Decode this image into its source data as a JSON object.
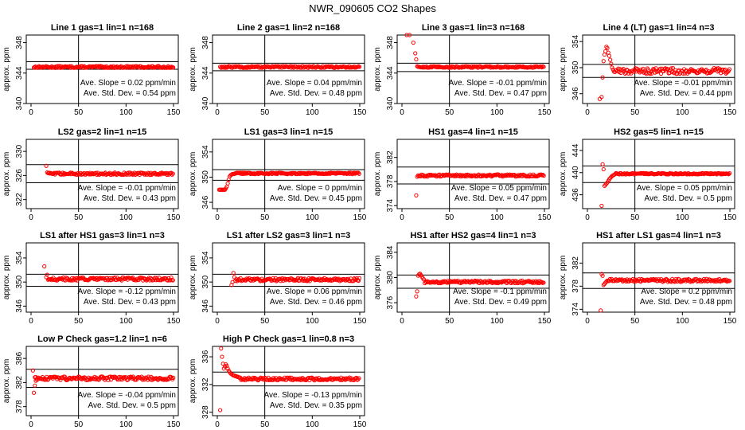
{
  "page_title": "NWR_090605  CO2 Shapes",
  "colors": {
    "points": "#ff0000",
    "axes": "#000000",
    "text": "#000000"
  },
  "chart_data": [
    {
      "type": "scatter",
      "title": "Line 1 gas=1 lin=1 n=168",
      "ylabel": "approx. ppm",
      "xlim": [
        0,
        150
      ],
      "ylim": [
        340,
        349
      ],
      "y_ticks": [
        340,
        344,
        348
      ],
      "x_ticks": [
        0,
        50,
        100,
        150
      ],
      "vline_x": 50,
      "hlines": [
        344.5,
        345.5
      ],
      "slope_text": "Ave. Slope = 0.02 ppm/min",
      "std_text": "Ave. Std. Dev. = 0.54 ppm",
      "shape": {
        "start": 3,
        "end": 150,
        "base": 344.8,
        "noise": 0.12,
        "spike": []
      }
    },
    {
      "type": "scatter",
      "title": "Line 2 gas=1 lin=2 n=168",
      "ylabel": "approx. ppm",
      "xlim": [
        0,
        150
      ],
      "ylim": [
        340,
        349
      ],
      "y_ticks": [
        340,
        344,
        348
      ],
      "x_ticks": [
        0,
        50,
        100,
        150
      ],
      "vline_x": 50,
      "hlines": [
        344.3,
        345.3
      ],
      "slope_text": "Ave. Slope = 0.04 ppm/min",
      "std_text": "Ave. Std. Dev. = 0.48 ppm",
      "shape": {
        "start": 3,
        "end": 150,
        "base": 344.8,
        "noise": 0.12,
        "spike": []
      }
    },
    {
      "type": "scatter",
      "title": "Line 3 gas=1 lin=3 n=168",
      "ylabel": "approx. ppm",
      "xlim": [
        0,
        150
      ],
      "ylim": [
        340,
        349
      ],
      "y_ticks": [
        340,
        344,
        348
      ],
      "x_ticks": [
        0,
        50,
        100,
        150
      ],
      "vline_x": 50,
      "hlines": [
        344.2,
        345.3
      ],
      "slope_text": "Ave. Slope = -0.01 ppm/min",
      "std_text": "Ave. Std. Dev. = 0.47 ppm",
      "shape": {
        "start": 16,
        "end": 150,
        "base": 344.8,
        "noise": 0.1,
        "spike": [
          [
            5,
            349
          ],
          [
            8,
            349
          ],
          [
            12,
            348
          ],
          [
            14,
            346.6
          ],
          [
            15,
            345.8
          ]
        ]
      }
    },
    {
      "type": "scatter",
      "title": "Line 4 (LT) gas=1 lin=4 n=3",
      "ylabel": "approx. ppm",
      "xlim": [
        0,
        150
      ],
      "ylim": [
        344.5,
        355
      ],
      "y_ticks": [
        346,
        350,
        354
      ],
      "x_ticks": [
        0,
        50,
        100,
        150
      ],
      "vline_x": 50,
      "hlines": [
        348.5,
        350.5
      ],
      "slope_text": "Ave. Slope = -0.01 ppm/min",
      "std_text": "Ave. Std. Dev. = 0.44 ppm",
      "shape": {
        "start": 28,
        "end": 150,
        "base": 349.5,
        "noise": 0.45,
        "spike": [
          [
            13,
            345.2
          ],
          [
            15,
            345.5
          ],
          [
            16,
            348.5
          ],
          [
            17,
            351
          ],
          [
            18,
            352
          ],
          [
            19,
            352.5
          ],
          [
            20,
            353.2
          ],
          [
            21,
            353
          ],
          [
            22,
            352.3
          ],
          [
            23,
            351.8
          ],
          [
            24,
            351.2
          ],
          [
            25,
            350.6
          ],
          [
            26,
            350
          ],
          [
            27,
            349.7
          ]
        ]
      }
    },
    {
      "type": "scatter",
      "title": "LS2 gas=2 lin=1 n=15",
      "ylabel": "approx. ppm",
      "xlim": [
        0,
        150
      ],
      "ylim": [
        320.5,
        332
      ],
      "y_ticks": [
        322,
        326,
        330
      ],
      "x_ticks": [
        0,
        50,
        100,
        150
      ],
      "vline_x": 50,
      "hlines": [
        324.8,
        327.8
      ],
      "slope_text": "Ave. Slope = -0.01 ppm/min",
      "std_text": "Ave. Std. Dev. = 0.43 ppm",
      "shape": {
        "start": 18,
        "end": 150,
        "base": 326.3,
        "noise": 0.18,
        "spike": [
          [
            16,
            327.6
          ],
          [
            17,
            326.5
          ]
        ]
      }
    },
    {
      "type": "scatter",
      "title": "LS1 gas=3 lin=1 n=15",
      "ylabel": "approx. ppm",
      "xlim": [
        0,
        150
      ],
      "ylim": [
        345,
        356
      ],
      "y_ticks": [
        346,
        350,
        354
      ],
      "x_ticks": [
        0,
        50,
        100,
        150
      ],
      "vline_x": 50,
      "hlines": [
        349.5,
        351.2
      ],
      "slope_text": "Ave. Slope = 0 ppm/min",
      "std_text": "Ave. Std. Dev. = 0.45 ppm",
      "shape": {
        "start": 18,
        "end": 150,
        "base": 350.6,
        "noise": 0.12,
        "spike": [
          [
            2,
            348
          ],
          [
            3,
            348
          ],
          [
            4,
            348
          ],
          [
            5,
            348
          ],
          [
            6,
            348
          ],
          [
            7,
            348
          ],
          [
            8,
            348
          ],
          [
            9,
            348.2
          ],
          [
            10,
            348.5
          ],
          [
            11,
            349
          ],
          [
            12,
            349.6
          ],
          [
            13,
            350.1
          ],
          [
            14,
            350.3
          ],
          [
            15,
            350.4
          ],
          [
            16,
            350.5
          ],
          [
            17,
            350.5
          ]
        ]
      }
    },
    {
      "type": "scatter",
      "title": "HS1 gas=4 lin=1 n=15",
      "ylabel": "approx. ppm",
      "xlim": [
        0,
        150
      ],
      "ylim": [
        373.5,
        385
      ],
      "y_ticks": [
        374,
        378,
        382
      ],
      "x_ticks": [
        0,
        50,
        100,
        150
      ],
      "vline_x": 50,
      "hlines": [
        377.6,
        380.4
      ],
      "slope_text": "Ave. Slope = 0.05 ppm/min",
      "std_text": "Ave. Std. Dev. = 0.47 ppm",
      "shape": {
        "start": 17,
        "end": 150,
        "base": 379,
        "noise": 0.18,
        "spike": [
          [
            15,
            375.7
          ],
          [
            16,
            378.8
          ]
        ]
      }
    },
    {
      "type": "scatter",
      "title": "HS2 gas=5 lin=1 n=15",
      "ylabel": "approx. ppm",
      "xlim": [
        0,
        150
      ],
      "ylim": [
        433.5,
        446
      ],
      "y_ticks": [
        436,
        440,
        444
      ],
      "x_ticks": [
        0,
        50,
        100,
        150
      ],
      "vline_x": 50,
      "hlines": [
        438.2,
        441.2
      ],
      "slope_text": "Ave. Slope = 0.05 ppm/min",
      "std_text": "Ave. Std. Dev. = 0.5 ppm",
      "shape": {
        "start": 30,
        "end": 150,
        "base": 439.8,
        "noise": 0.12,
        "spike": [
          [
            15,
            434
          ],
          [
            16,
            441.5
          ],
          [
            17,
            440.6
          ],
          [
            18,
            437.6
          ],
          [
            19,
            437.8
          ],
          [
            20,
            438
          ],
          [
            21,
            438.2
          ],
          [
            22,
            438.5
          ],
          [
            23,
            438.8
          ],
          [
            24,
            439
          ],
          [
            25,
            439.2
          ],
          [
            26,
            439.4
          ],
          [
            27,
            439.5
          ],
          [
            28,
            439.6
          ],
          [
            29,
            439.7
          ]
        ]
      }
    },
    {
      "type": "scatter",
      "title": "LS1 after HS1 gas=3 lin=1 n=3",
      "ylabel": "approx. ppm",
      "xlim": [
        0,
        150
      ],
      "ylim": [
        345,
        356.5
      ],
      "y_ticks": [
        346,
        350,
        354
      ],
      "x_ticks": [
        0,
        50,
        100,
        150
      ],
      "vline_x": 50,
      "hlines": [
        349.3,
        351.3
      ],
      "slope_text": "Ave. Slope = -0.12 ppm/min",
      "std_text": "Ave. Std. Dev. = 0.43 ppm",
      "shape": {
        "start": 18,
        "end": 150,
        "base": 350.5,
        "noise": 0.25,
        "spike": [
          [
            14,
            352.6
          ],
          [
            16,
            350.8
          ],
          [
            17,
            351.2
          ]
        ]
      }
    },
    {
      "type": "scatter",
      "title": "LS1 after LS2 gas=3 lin=1 n=3",
      "ylabel": "approx. ppm",
      "xlim": [
        0,
        150
      ],
      "ylim": [
        345,
        356.5
      ],
      "y_ticks": [
        346,
        350,
        354
      ],
      "x_ticks": [
        0,
        50,
        100,
        150
      ],
      "vline_x": 50,
      "hlines": [
        349.3,
        351.3
      ],
      "slope_text": "Ave. Slope = 0.06 ppm/min",
      "std_text": "Ave. Std. Dev. = 0.46 ppm",
      "shape": {
        "start": 20,
        "end": 150,
        "base": 350.4,
        "noise": 0.25,
        "spike": [
          [
            15,
            349.5
          ],
          [
            16,
            350
          ],
          [
            17,
            351.5
          ],
          [
            18,
            350.8
          ],
          [
            19,
            350.2
          ]
        ]
      }
    },
    {
      "type": "scatter",
      "title": "HS1 after HS2 gas=4 lin=1 n=3",
      "ylabel": "approx. ppm",
      "xlim": [
        0,
        150
      ],
      "ylim": [
        374.5,
        385.5
      ],
      "y_ticks": [
        376,
        380,
        384
      ],
      "x_ticks": [
        0,
        50,
        100,
        150
      ],
      "vline_x": 50,
      "hlines": [
        378.3,
        380.4
      ],
      "slope_text": "Ave. Slope = -0.1 ppm/min",
      "std_text": "Ave. Std. Dev. = 0.49 ppm",
      "shape": {
        "start": 24,
        "end": 150,
        "base": 379.3,
        "noise": 0.2,
        "spike": [
          [
            15,
            377
          ],
          [
            16,
            377.8
          ],
          [
            17,
            380.3
          ],
          [
            18,
            380.5
          ],
          [
            19,
            380.6
          ],
          [
            20,
            380.4
          ],
          [
            21,
            380.1
          ],
          [
            22,
            379.9
          ],
          [
            23,
            379.7
          ]
        ]
      }
    },
    {
      "type": "scatter",
      "title": "HS1 after LS1 gas=4 lin=1 n=3",
      "ylabel": "approx. ppm",
      "xlim": [
        0,
        150
      ],
      "ylim": [
        373.5,
        385.5
      ],
      "y_ticks": [
        374,
        378,
        382
      ],
      "x_ticks": [
        0,
        50,
        100,
        150
      ],
      "vline_x": 50,
      "hlines": [
        377.6,
        380.3
      ],
      "slope_text": "Ave. Slope = 0.2 ppm/min",
      "std_text": "Ave. Std. Dev. = 0.48 ppm",
      "shape": {
        "start": 21,
        "end": 150,
        "base": 379,
        "noise": 0.25,
        "spike": [
          [
            14,
            373.8
          ],
          [
            15,
            380.1
          ],
          [
            16,
            379.8
          ],
          [
            17,
            378.2
          ],
          [
            18,
            378.4
          ],
          [
            19,
            378.6
          ],
          [
            20,
            378.8
          ]
        ]
      }
    },
    {
      "type": "scatter",
      "title": "Low P Check gas=1.2 lin=1 n=6",
      "ylabel": "approx. ppm",
      "xlim": [
        0,
        150
      ],
      "ylim": [
        376.5,
        388
      ],
      "y_ticks": [
        378,
        382,
        386
      ],
      "x_ticks": [
        0,
        50,
        100,
        150
      ],
      "vline_x": 50,
      "hlines": [
        381.2,
        384.2
      ],
      "slope_text": "Ave. Slope = -0.04 ppm/min",
      "std_text": "Ave. Std. Dev. = 0.5 ppm",
      "shape": {
        "start": 4,
        "end": 150,
        "base": 382.7,
        "noise": 0.3,
        "spike": [
          [
            2,
            384
          ],
          [
            3,
            380.3
          ],
          [
            4,
            381.5
          ],
          [
            5,
            382.3
          ]
        ]
      }
    },
    {
      "type": "scatter",
      "title": "High P Check gas=1 lin=0.8 n=3",
      "ylabel": "approx. ppm",
      "xlim": [
        0,
        150
      ],
      "ylim": [
        327.5,
        337.5
      ],
      "y_ticks": [
        328,
        332,
        336
      ],
      "x_ticks": [
        0,
        50,
        100,
        150
      ],
      "vline_x": 50,
      "hlines": [
        331.8,
        333.8
      ],
      "slope_text": "Ave. Slope = -0.13 ppm/min",
      "std_text": "Ave. Std. Dev. = 0.35 ppm",
      "shape": {
        "start": 25,
        "end": 150,
        "base": 332.8,
        "noise": 0.2,
        "spike": [
          [
            3,
            328.3
          ],
          [
            4,
            337.2
          ],
          [
            5,
            336
          ],
          [
            6,
            335
          ],
          [
            7,
            334.3
          ],
          [
            8,
            334.6
          ],
          [
            9,
            334.9
          ],
          [
            10,
            334.7
          ],
          [
            11,
            334.3
          ],
          [
            12,
            334
          ],
          [
            13,
            333.8
          ],
          [
            14,
            333.6
          ],
          [
            15,
            333.5
          ],
          [
            16,
            333.4
          ],
          [
            17,
            333.3
          ],
          [
            18,
            333.3
          ],
          [
            19,
            333.2
          ],
          [
            20,
            333.2
          ],
          [
            21,
            333.1
          ],
          [
            22,
            333.1
          ],
          [
            23,
            333
          ],
          [
            24,
            333
          ]
        ]
      }
    }
  ]
}
